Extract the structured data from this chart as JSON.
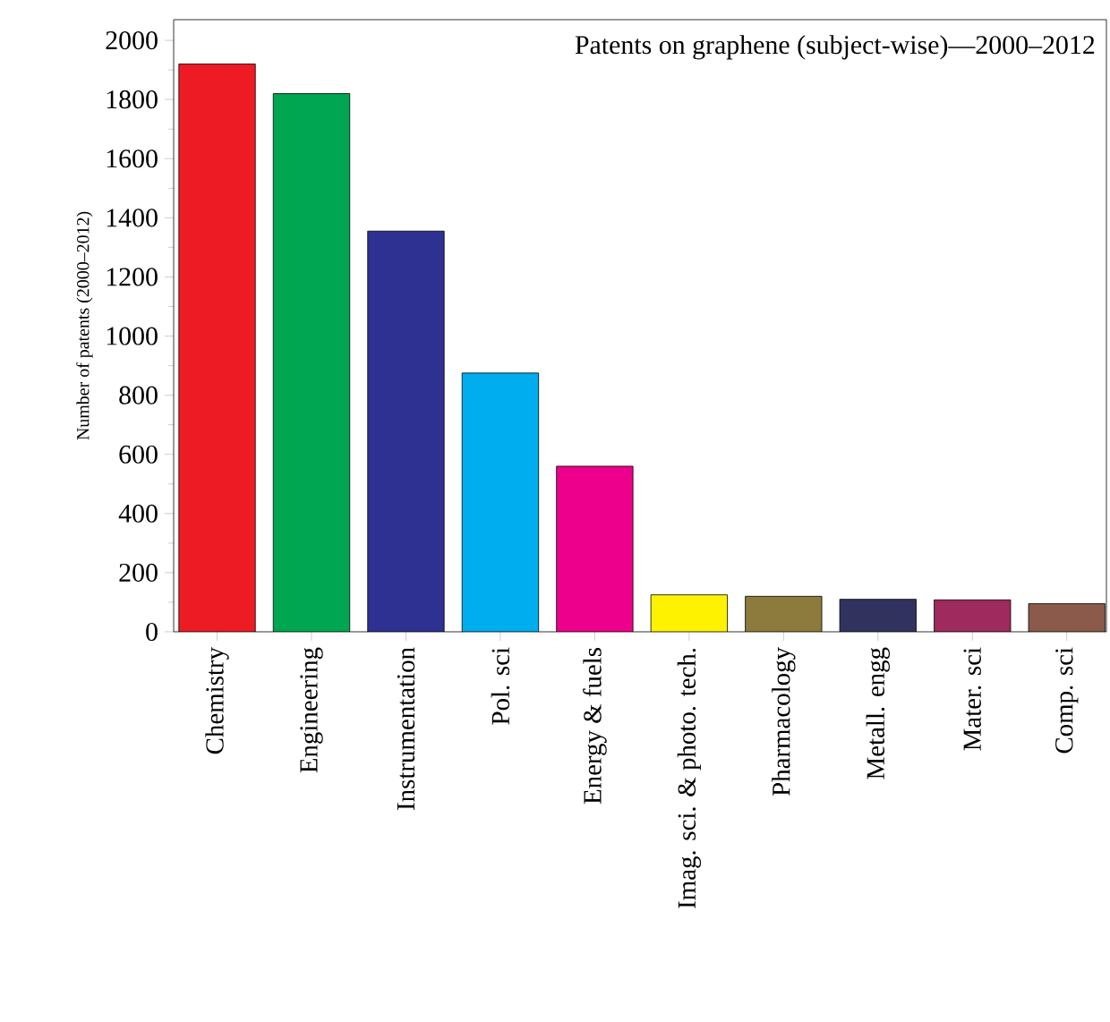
{
  "chart_data": {
    "type": "bar",
    "title": "Patents on graphene (subject-wise)—2000–2012",
    "ylabel": "Number of patents (2000–2012)",
    "categories": [
      "Chemistry",
      "Engineering",
      "Instrumentation",
      "Pol. sci",
      "Energy & fuels",
      "Imag. sci. & photo. tech.",
      "Pharmacology",
      "Metall. engg",
      "Mater. sci",
      "Comp. sci"
    ],
    "values": [
      1920,
      1820,
      1355,
      875,
      560,
      125,
      120,
      110,
      108,
      95
    ],
    "colors": [
      "#ed1c24",
      "#00a651",
      "#2e3192",
      "#00aeef",
      "#ec008c",
      "#fff200",
      "#8c7b3c",
      "#32325f",
      "#9e2a5e",
      "#8b5a4a"
    ],
    "ylim": [
      0,
      2070
    ],
    "yticks": [
      0,
      200,
      400,
      600,
      800,
      1000,
      1200,
      1400,
      1600,
      1800,
      2000
    ],
    "grid": false
  }
}
